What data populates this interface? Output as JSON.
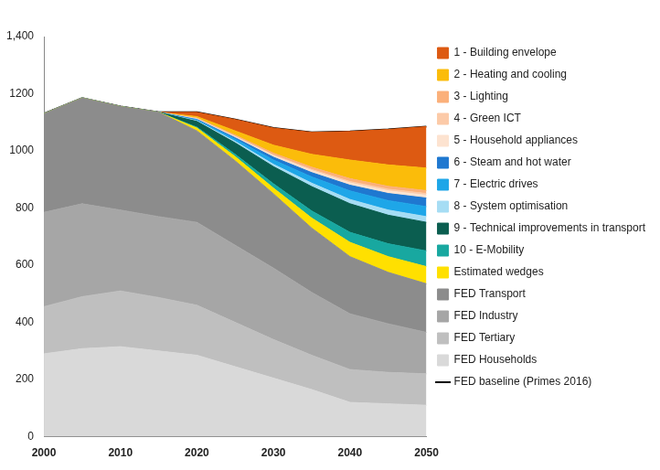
{
  "chart_data": {
    "type": "area",
    "stacked": true,
    "legend": "right",
    "grid": false,
    "x": [
      2000,
      2005,
      2010,
      2015,
      2020,
      2025,
      2030,
      2035,
      2040,
      2045,
      2050
    ],
    "xlim": [
      2000,
      2050
    ],
    "xticks": [
      2000,
      2010,
      2020,
      2030,
      2040,
      2050
    ],
    "ylim": [
      0,
      1400
    ],
    "yticks": [
      0,
      200,
      400,
      600,
      800,
      1000,
      1200,
      {
        "value": 1400,
        "label": "1,400"
      }
    ],
    "series": [
      {
        "name": "1 - Building envelope",
        "color": "#dd5a12",
        "values": [
          0,
          0,
          0,
          0,
          15,
          40,
          60,
          77,
          100,
          124,
          145
        ]
      },
      {
        "name": "2 - Heating and cooling",
        "color": "#fbbc0a",
        "values": [
          0,
          0,
          0,
          0,
          5,
          15,
          28,
          45,
          65,
          75,
          79
        ]
      },
      {
        "name": "3 - Lighting",
        "color": "#fbb07a",
        "values": [
          0,
          0,
          0,
          0,
          2,
          4,
          6,
          8,
          10,
          10,
          10
        ]
      },
      {
        "name": "4 - Green ICT",
        "color": "#fccaa8",
        "values": [
          0,
          0,
          0,
          0,
          1,
          2,
          3,
          4,
          5,
          6,
          6
        ]
      },
      {
        "name": "5 - Household appliances",
        "color": "#fde3d0",
        "values": [
          0,
          0,
          0,
          0,
          2,
          3,
          5,
          7,
          8,
          9,
          10
        ]
      },
      {
        "name": "6 - Steam and hot water",
        "color": "#1f78d0",
        "values": [
          0,
          0,
          0,
          0,
          2,
          5,
          10,
          15,
          20,
          25,
          30
        ]
      },
      {
        "name": "7 - Electric drives",
        "color": "#1ea6e8",
        "values": [
          0,
          0,
          0,
          0,
          3,
          8,
          15,
          22,
          30,
          33,
          35
        ]
      },
      {
        "name": "8 - System optimisation",
        "color": "#a6ddf4",
        "values": [
          0,
          0,
          0,
          0,
          2,
          5,
          8,
          12,
          15,
          18,
          20
        ]
      },
      {
        "name": "9 - Technical improvements in transport",
        "color": "#0b5e50",
        "values": [
          0,
          0,
          0,
          0,
          20,
          40,
          60,
          85,
          100,
          100,
          100
        ]
      },
      {
        "name": "10 - E-Mobility",
        "color": "#18a8a0",
        "values": [
          0,
          0,
          0,
          0,
          3,
          8,
          15,
          25,
          35,
          45,
          55
        ]
      },
      {
        "name": "Estimated wedges",
        "color": "#ffe000",
        "values": [
          0,
          0,
          0,
          0,
          10,
          15,
          20,
          35,
          50,
          55,
          60
        ]
      },
      {
        "name": "FED Transport",
        "color": "#8c8c8c",
        "values": [
          345,
          370,
          362,
          365,
          320,
          295,
          260,
          225,
          200,
          180,
          170
        ]
      },
      {
        "name": "FED Industry",
        "color": "#a6a6a6",
        "values": [
          330,
          325,
          283,
          283,
          290,
          270,
          250,
          220,
          195,
          170,
          145
        ]
      },
      {
        "name": "FED Tertiary",
        "color": "#bfbfbf",
        "values": [
          165,
          182,
          195,
          187,
          175,
          155,
          135,
          120,
          115,
          110,
          110
        ]
      },
      {
        "name": "FED Households",
        "color": "#d9d9d9",
        "values": [
          290,
          308,
          315,
          300,
          285,
          245,
          205,
          165,
          120,
          115,
          110
        ]
      },
      {
        "name": "FED baseline (Primes 2016)",
        "color": "#000000",
        "type": "line",
        "values": [
          1130,
          1185,
          1155,
          1135,
          1135,
          1110,
          1080,
          1065,
          1068,
          1075,
          1085
        ]
      }
    ]
  }
}
